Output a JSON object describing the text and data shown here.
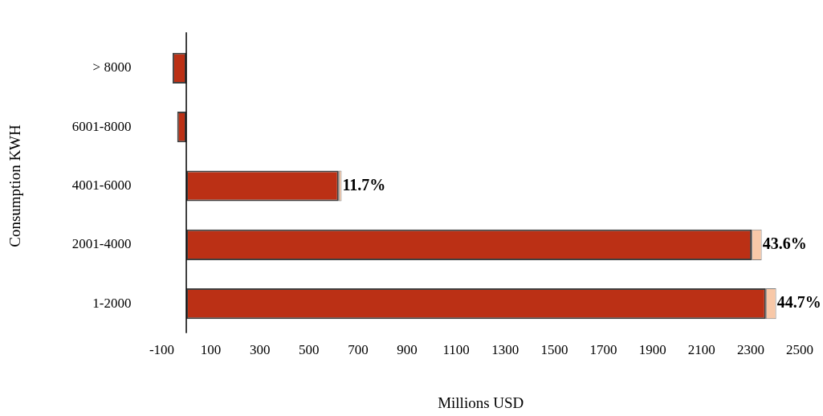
{
  "chart_data": {
    "type": "bar",
    "orientation": "horizontal",
    "stacked": true,
    "xlabel": "Millions USD",
    "ylabel": "Consumption KWH",
    "categories": [
      "> 8000",
      "6001-8000",
      "4001-6000",
      "2001-4000",
      "1-2000"
    ],
    "series": [
      {
        "color": "#bb3015",
        "values": [
          -56,
          -37,
          621,
          2304,
          2362
        ]
      },
      {
        "color": "#f8c8a8",
        "values": [
          null,
          null,
          12,
          41,
          42
        ]
      }
    ],
    "annotations": [
      {
        "text": "11.7%",
        "x": 633,
        "y": "4001-6000"
      },
      {
        "text": "43.6%",
        "x": 2345,
        "y": "2001-4000"
      },
      {
        "text": "44.7%",
        "x": 2404,
        "y": "1-2000"
      }
    ],
    "xlim": [
      -100,
      2500
    ],
    "xticks": [
      -100,
      100,
      300,
      500,
      700,
      900,
      1100,
      1300,
      1500,
      1700,
      1900,
      2100,
      2300,
      2500
    ],
    "grid": false,
    "legend": false
  }
}
